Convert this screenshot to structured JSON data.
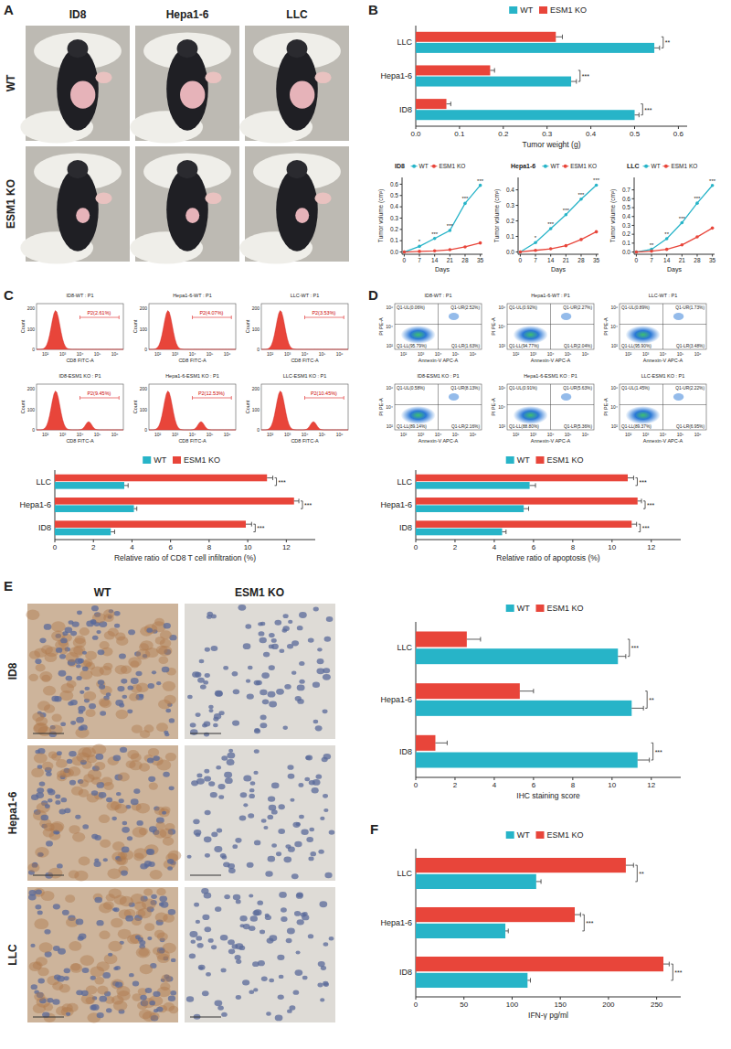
{
  "panel_labels": [
    "A",
    "B",
    "C",
    "D",
    "E",
    "F"
  ],
  "photos": {
    "columns": [
      "ID8",
      "Hepa1-6",
      "LLC"
    ],
    "rows": [
      "WT",
      "ESM1 KO"
    ]
  },
  "flow_cd8": {
    "x_label": "CD8 FITC-A",
    "y_label": "Count",
    "x_ticks": [
      "10²",
      "10³",
      "10⁴",
      "10⁵",
      "10⁶"
    ],
    "y_ticks": [
      "0",
      "100",
      "200"
    ],
    "plots": [
      [
        {
          "title": "ID8-WT : P1",
          "gate": "P2(2.61%)"
        },
        {
          "title": "Hepa1-6-WT : P1",
          "gate": "P2(4.07%)"
        },
        {
          "title": "LLC-WT : P1",
          "gate": "P2(3.53%)"
        }
      ],
      [
        {
          "title": "ID8-ESM1 KO : P1",
          "gate": "P2(9.45%)"
        },
        {
          "title": "Hepa1-6-ESM1 KO : P1",
          "gate": "P2(12.53%)"
        },
        {
          "title": "LLC-ESM1 KO : P1",
          "gate": "P2(10.45%)"
        }
      ]
    ]
  },
  "flow_apoptosis": {
    "x_label": "Annexin-V APC-A",
    "y_label": "PI PE-A",
    "x_ticks": [
      "10²",
      "10³",
      "10⁴",
      "10⁵",
      "10⁶"
    ],
    "y_ticks": [
      "10²",
      "10⁴",
      "10⁶"
    ],
    "plots": [
      [
        {
          "title": "ID8-WT : P1",
          "quadrants": [
            "Q1-UL(0.06%)",
            "Q1-UR(2.52%)",
            "Q1-LL(95.79%)",
            "Q1-LR(1.63%)"
          ]
        },
        {
          "title": "Hepa1-6-WT : P1",
          "quadrants": [
            "Q1-UL(0.92%)",
            "Q1-UR(2.27%)",
            "Q1-LL(94.77%)",
            "Q1-LR(2.04%)"
          ]
        },
        {
          "title": "LLC-WT : P1",
          "quadrants": [
            "Q1-UL(0.89%)",
            "Q1-UR(1.73%)",
            "Q1-LL(95.90%)",
            "Q1-LR(3.48%)"
          ]
        }
      ],
      [
        {
          "title": "ID8-ESM1 KO : P1",
          "quadrants": [
            "Q1-UL(0.58%)",
            "Q1-UR(8.13%)",
            "Q1-LL(89.14%)",
            "Q1-LR(2.16%)"
          ]
        },
        {
          "title": "Hepa1-6-ESM1 KO : P1",
          "quadrants": [
            "Q1-UL(0.91%)",
            "Q1-UR(5.63%)",
            "Q1-LL(88.80%)",
            "Q1-LR(5.36%)"
          ]
        },
        {
          "title": "LLC-ESM1 KO : P1",
          "quadrants": [
            "Q1-UL(1.45%)",
            "Q1-UR(2.22%)",
            "Q1-LL(89.37%)",
            "Q1-LR(6.95%)"
          ]
        }
      ]
    ]
  },
  "ihc_images": {
    "columns": [
      "WT",
      "ESM1 KO"
    ],
    "rows": [
      "ID8",
      "Hepa1-6",
      "LLC"
    ]
  },
  "chart_data": [
    {
      "type": "bar",
      "orientation": "horizontal",
      "x_label": "Tumor weight (g)",
      "categories": [
        "ID8",
        "Hepa1-6",
        "LLC"
      ],
      "series": [
        {
          "name": "WT",
          "color": "#27b4c8",
          "values": [
            0.5,
            0.355,
            0.545
          ],
          "errors": [
            0.01,
            0.012,
            0.012
          ]
        },
        {
          "name": "ESM1 KO",
          "color": "#e8453a",
          "values": [
            0.07,
            0.17,
            0.32
          ],
          "errors": [
            0.01,
            0.01,
            0.015
          ]
        }
      ],
      "xlim": [
        0,
        0.62
      ],
      "xticks": [
        {
          "value": 0,
          "label": "0.0"
        },
        0.1,
        0.2,
        0.3,
        0.4,
        0.5,
        0.6
      ],
      "grid": false,
      "legend": "top",
      "annotations": [
        "***",
        "***",
        "**"
      ]
    },
    {
      "type": "line",
      "title": "ID8",
      "x_label": "Days",
      "y_label": "Tumor volume (cm³)",
      "x": [
        0,
        7,
        14,
        21,
        28,
        35
      ],
      "series": [
        {
          "name": "WT",
          "color": "#27b4c8",
          "marker": "circle",
          "values": [
            0,
            0.05,
            0.12,
            0.19,
            0.43,
            0.59
          ]
        },
        {
          "name": "ESM1 KO",
          "color": "#e8453a",
          "marker": "circle",
          "values": [
            0,
            0.005,
            0.01,
            0.02,
            0.045,
            0.08
          ]
        }
      ],
      "xlim": [
        -1,
        36
      ],
      "xticks": [
        0,
        7,
        14,
        21,
        28,
        35
      ],
      "ylim": [
        -0.02,
        0.66
      ],
      "yticks": [
        {
          "value": 0,
          "label": "0.0"
        },
        0.1,
        0.2,
        0.3,
        0.4,
        0.5,
        0.6
      ],
      "legend": "top",
      "annotations": [
        {
          "x": 7,
          "text": "*"
        },
        {
          "x": 14,
          "text": "***"
        },
        {
          "x": 21,
          "text": "***"
        },
        {
          "x": 28,
          "text": "***"
        },
        {
          "x": 35,
          "text": "***"
        }
      ]
    },
    {
      "type": "line",
      "title": "Hepa1-6",
      "x_label": "Days",
      "y_label": "Tumor volume (cm³)",
      "x": [
        0,
        7,
        14,
        21,
        28,
        35
      ],
      "series": [
        {
          "name": "WT",
          "color": "#27b4c8",
          "marker": "circle",
          "values": [
            0,
            0.06,
            0.15,
            0.24,
            0.34,
            0.43
          ]
        },
        {
          "name": "ESM1 KO",
          "color": "#e8453a",
          "marker": "circle",
          "values": [
            0,
            0.01,
            0.02,
            0.04,
            0.08,
            0.13
          ]
        }
      ],
      "xlim": [
        -1,
        36
      ],
      "xticks": [
        0,
        7,
        14,
        21,
        28,
        35
      ],
      "ylim": [
        -0.015,
        0.48
      ],
      "yticks": [
        {
          "value": 0,
          "label": "0.0"
        },
        0.1,
        0.2,
        0.3,
        0.4
      ],
      "legend": "top",
      "annotations": [
        {
          "x": 7,
          "text": "*"
        },
        {
          "x": 14,
          "text": "***"
        },
        {
          "x": 21,
          "text": "***"
        },
        {
          "x": 28,
          "text": "***"
        },
        {
          "x": 35,
          "text": "***"
        }
      ]
    },
    {
      "type": "line",
      "title": "LLC",
      "x_label": "Days",
      "y_label": "Tumor volume (cm³)",
      "x": [
        0,
        7,
        14,
        21,
        28,
        35
      ],
      "series": [
        {
          "name": "WT",
          "color": "#27b4c8",
          "marker": "circle",
          "values": [
            0,
            0.03,
            0.15,
            0.33,
            0.55,
            0.75
          ]
        },
        {
          "name": "ESM1 KO",
          "color": "#e8453a",
          "marker": "circle",
          "values": [
            0,
            0.01,
            0.03,
            0.08,
            0.17,
            0.27
          ]
        }
      ],
      "xlim": [
        -1,
        36
      ],
      "xticks": [
        0,
        7,
        14,
        21,
        28,
        35
      ],
      "ylim": [
        -0.025,
        0.84
      ],
      "yticks": [
        {
          "value": 0,
          "label": "0.0"
        },
        0.1,
        0.2,
        0.3,
        0.4,
        0.5,
        0.6,
        0.7
      ],
      "legend": "top",
      "annotations": [
        {
          "x": 7,
          "text": "**"
        },
        {
          "x": 14,
          "text": "**"
        },
        {
          "x": 21,
          "text": "***"
        },
        {
          "x": 28,
          "text": "***"
        },
        {
          "x": 35,
          "text": "***"
        }
      ]
    },
    {
      "type": "bar",
      "orientation": "horizontal",
      "x_label": "Relative ratio of CD8 T cell infiltration (%)",
      "categories": [
        "ID8",
        "Hepa1-6",
        "LLC"
      ],
      "series": [
        {
          "name": "WT",
          "color": "#27b4c8",
          "values": [
            2.9,
            4.1,
            3.6
          ],
          "errors": [
            0.2,
            0.15,
            0.2
          ]
        },
        {
          "name": "ESM1 KO",
          "color": "#e8453a",
          "values": [
            9.9,
            12.4,
            11.0
          ],
          "errors": [
            0.3,
            0.25,
            0.3
          ]
        }
      ],
      "xlim": [
        0,
        13.5
      ],
      "xticks": [
        0,
        2,
        4,
        6,
        8,
        10,
        12
      ],
      "grid": false,
      "legend": "top",
      "annotations": [
        "***",
        "***",
        "***"
      ]
    },
    {
      "type": "bar",
      "orientation": "horizontal",
      "x_label": "Relative ratio of apoptosis (%)",
      "categories": [
        "ID8",
        "Hepa1-6",
        "LLC"
      ],
      "series": [
        {
          "name": "WT",
          "color": "#27b4c8",
          "values": [
            4.4,
            5.5,
            5.8
          ],
          "errors": [
            0.2,
            0.25,
            0.3
          ]
        },
        {
          "name": "ESM1 KO",
          "color": "#e8453a",
          "values": [
            11.0,
            11.3,
            10.8
          ],
          "errors": [
            0.25,
            0.2,
            0.3
          ]
        }
      ],
      "xlim": [
        0,
        13.5
      ],
      "xticks": [
        0,
        2,
        4,
        6,
        8,
        10,
        12
      ],
      "grid": false,
      "legend": "top",
      "annotations": [
        "***",
        "***",
        "***"
      ]
    },
    {
      "type": "bar",
      "orientation": "horizontal",
      "x_label": "IHC staining score",
      "categories": [
        "ID8",
        "Hepa1-6",
        "LLC"
      ],
      "series": [
        {
          "name": "WT",
          "color": "#27b4c8",
          "values": [
            11.3,
            11.0,
            10.3
          ],
          "errors": [
            0.6,
            0.6,
            0.4
          ]
        },
        {
          "name": "ESM1 KO",
          "color": "#e8453a",
          "values": [
            1.0,
            5.3,
            2.6
          ],
          "errors": [
            0.6,
            0.7,
            0.7
          ]
        }
      ],
      "xlim": [
        0,
        13.5
      ],
      "xticks": [
        0,
        2,
        4,
        6,
        8,
        10,
        12
      ],
      "grid": false,
      "legend": "top",
      "annotations": [
        "***",
        "**",
        "***"
      ]
    },
    {
      "type": "bar",
      "orientation": "horizontal",
      "x_label": "IFN-γ pg/ml",
      "categories": [
        "ID8",
        "Hepa1-6",
        "LLC"
      ],
      "series": [
        {
          "name": "WT",
          "color": "#27b4c8",
          "values": [
            116,
            93,
            125
          ],
          "errors": [
            3,
            3,
            5
          ]
        },
        {
          "name": "ESM1 KO",
          "color": "#e8453a",
          "values": [
            257,
            165,
            218
          ],
          "errors": [
            6,
            6,
            8
          ]
        }
      ],
      "xlim": [
        0,
        275
      ],
      "xticks": [
        0,
        50,
        100,
        150,
        200,
        250
      ],
      "grid": false,
      "legend": "top",
      "annotations": [
        "***",
        "***",
        "**"
      ]
    }
  ]
}
